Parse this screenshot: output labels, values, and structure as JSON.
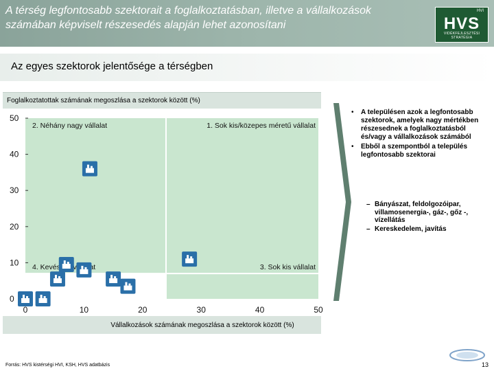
{
  "header": {
    "title": "A térség legfontosabb szektorait a foglalkoztatásban, illetve a vállalkozások számában képviselt részesedés alapján lehet azonosítani",
    "logo_small": "HVI",
    "logo_main": "HVS",
    "logo_sub": "VIDÉKFEJLESZTÉSI STRATÉGIA"
  },
  "subtitle": "Az egyes szektorok jelentősége a térségben",
  "chart_data": {
    "type": "scatter",
    "title": "Foglalkoztatottak számának megoszlása a szektorok között (%)",
    "xlabel": "Vállalkozások számának megoszlása a szektorok között (%)",
    "ylabel": "",
    "xlim": [
      0,
      50
    ],
    "ylim": [
      0,
      50
    ],
    "x_ticks": [
      "0",
      "10",
      "20",
      "30",
      "40",
      "50"
    ],
    "y_ticks": [
      "0",
      "10",
      "20",
      "30",
      "40",
      "50"
    ],
    "quadrants": [
      {
        "label": "2. Néhány nagy vállalat",
        "color": "#c9e6cf"
      },
      {
        "label": "1. Sok kis/közepes méretű vállalat",
        "color": "#c9e6cf"
      },
      {
        "label": "4. Kevés kis vállalat",
        "color": "#ffffff"
      },
      {
        "label": "3. Sok kis vállalat",
        "color": "#c9e6cf"
      }
    ],
    "divider_x": 24,
    "divider_y": 7,
    "points": [
      {
        "x": 11,
        "y": 36,
        "icon": "factory-icon"
      },
      {
        "x": 28,
        "y": 11,
        "icon": "agriculture-icon"
      },
      {
        "x": 7,
        "y": 9.5,
        "icon": "tools-icon"
      },
      {
        "x": 10,
        "y": 8,
        "icon": "tree-icon"
      },
      {
        "x": 15,
        "y": 5.5,
        "icon": "construction-icon"
      },
      {
        "x": 17.5,
        "y": 3.5,
        "icon": "building-icon"
      },
      {
        "x": 5.5,
        "y": 5.5,
        "icon": "transport-icon"
      },
      {
        "x": 0,
        "y": 0,
        "icon": "gear-icon"
      },
      {
        "x": 3,
        "y": 0,
        "icon": "education-icon"
      }
    ]
  },
  "bullets": [
    "A településen azok a legfontosabb szektorok, amelyek nagy mértékben részesednek a foglalkoztatásból és/vagy a vállalkozások számából",
    "Ebből a szempontból a település legfontosabb szektorai"
  ],
  "sectors": [
    "Bányászat, feldolgozóipar, villamosenergia-, gáz-, gőz -, vízellátás",
    "Kereskedelem, javítás"
  ],
  "footer": {
    "source": "Forrás: HVS kistérségi HVI, KSH, HVS adatbázis",
    "page_number": "13"
  },
  "colors": {
    "header_bg": "#9db5ab",
    "quadrant_green": "#c9e6cf",
    "icon_blue": "#2a6fa8",
    "logo_green": "#1f5a33"
  }
}
